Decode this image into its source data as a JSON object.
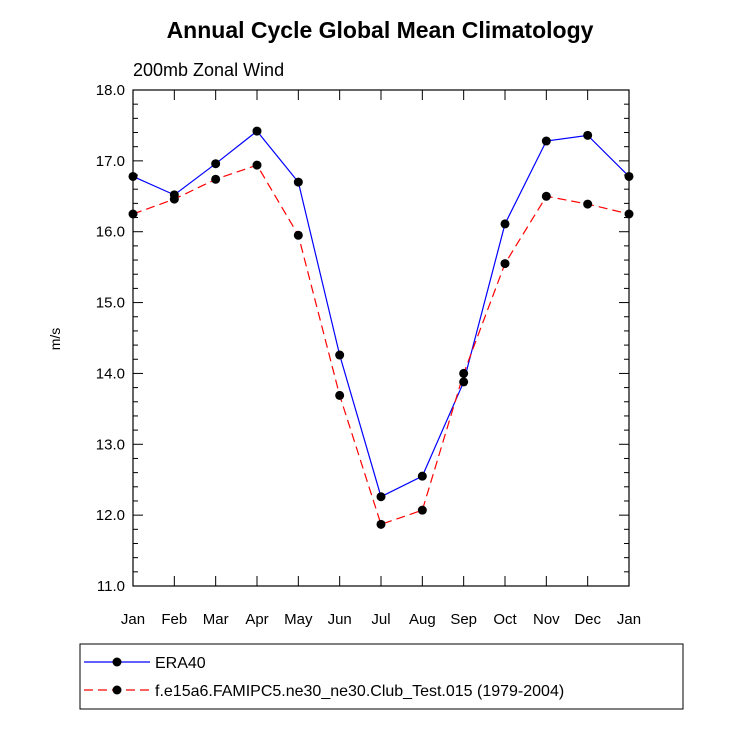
{
  "chart_data": {
    "type": "line",
    "title": "Annual Cycle Global Mean Climatology",
    "subtitle": "200mb Zonal Wind",
    "xlabel": "",
    "ylabel": "m/s",
    "categories": [
      "Jan",
      "Feb",
      "Mar",
      "Apr",
      "May",
      "Jun",
      "Jul",
      "Aug",
      "Sep",
      "Oct",
      "Nov",
      "Dec",
      "Jan"
    ],
    "ylim": [
      11.0,
      18.0
    ],
    "yticks": [
      "11.0",
      "12.0",
      "13.0",
      "14.0",
      "15.0",
      "16.0",
      "17.0",
      "18.0"
    ],
    "grid": false,
    "legend_position": "bottom",
    "series": [
      {
        "name": "ERA40",
        "color": "#0000ff",
        "dash": "solid",
        "values": [
          16.78,
          16.52,
          16.96,
          17.42,
          16.7,
          14.26,
          12.26,
          12.55,
          13.88,
          16.11,
          17.28,
          17.36,
          16.78
        ]
      },
      {
        "name": "f.e15a6.FAMIPC5.ne30_ne30.Club_Test.015 (1979-2004)",
        "color": "#ff0000",
        "dash": "dashed",
        "values": [
          16.25,
          16.46,
          16.74,
          16.94,
          15.95,
          13.69,
          11.87,
          12.07,
          14.0,
          15.55,
          16.5,
          16.39,
          16.25
        ]
      }
    ]
  }
}
